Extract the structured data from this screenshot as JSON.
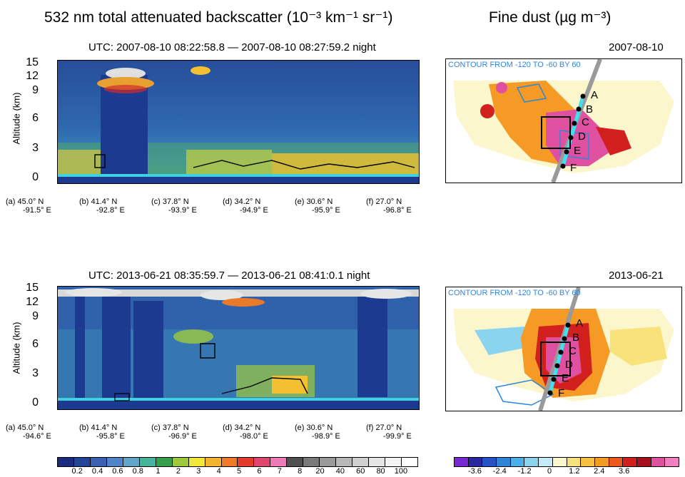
{
  "headings": {
    "left": "532 nm  total attenuated backscatter (10⁻³ km⁻¹ sr⁻¹)",
    "right": "Fine dust (µg m⁻³)"
  },
  "panels": [
    {
      "utc": "UTC: 2007-08-10 08:22:58.8 —  2007-08-10 08:27:59.2 night",
      "date": "2007-08-10",
      "contour_note": "CONTOUR FROM -120 TO -60 BY 60",
      "ylabel": "Altitude (km)",
      "yticks": [
        "15",
        "12",
        "9",
        "6",
        "3",
        "0"
      ],
      "xticks": [
        {
          "l1": "(a) 45.0° N",
          "l2": "-91.5° E"
        },
        {
          "l1": "(b) 41.4° N",
          "l2": "-92.8° E"
        },
        {
          "l1": "(c) 37.8° N",
          "l2": "-93.9° E"
        },
        {
          "l1": "(d) 34.2° N",
          "l2": "-94.9° E"
        },
        {
          "l1": "(e) 30.6° N",
          "l2": "-95.9° E"
        },
        {
          "l1": "(f)  27.0° N",
          "l2": "-96.8° E"
        }
      ],
      "points": [
        "A",
        "B",
        "C",
        "D",
        "E",
        "F"
      ]
    },
    {
      "utc": "UTC: 2013-06-21 08:35:59.7 —  2013-06-21 08:41:0.1 night",
      "date": "2013-06-21",
      "contour_note": "CONTOUR FROM -120 TO -60 BY 60",
      "ylabel": "Altitude (km)",
      "yticks": [
        "15",
        "12",
        "9",
        "6",
        "3",
        "0"
      ],
      "xticks": [
        {
          "l1": "(a) 45.0° N",
          "l2": "-94.6° E"
        },
        {
          "l1": "(b) 41.4° N",
          "l2": "-95.8° E"
        },
        {
          "l1": "(c) 37.8° N",
          "l2": "-96.9° E"
        },
        {
          "l1": "(d) 34.2° N",
          "l2": "-98.0° E"
        },
        {
          "l1": "(e) 30.6° N",
          "l2": "-98.9° E"
        },
        {
          "l1": "(f)  27.0° N",
          "l2": "-99.9° E"
        }
      ],
      "points": [
        "A",
        "B",
        "C",
        "D",
        "E",
        "F"
      ]
    }
  ],
  "colorbars": {
    "backscatter": {
      "labels": [
        "0.2",
        "0.4",
        "0.6",
        "0.8",
        "1",
        "2",
        "3",
        "4",
        "5",
        "6",
        "7",
        "8",
        "20",
        "40",
        "60",
        "80",
        "100"
      ],
      "colors": [
        "#1a2a80",
        "#24449a",
        "#3a62b4",
        "#4f84c8",
        "#5fa5cc",
        "#44b49a",
        "#34a04a",
        "#9ec93c",
        "#f2e83a",
        "#f5b430",
        "#f07a28",
        "#e63a2a",
        "#e0466e",
        "#ef7ab8",
        "#505050",
        "#7a7a7a",
        "#9a9a9a",
        "#b8b8b8",
        "#d0d0d0",
        "#e4e4e4",
        "#f2f2f2",
        "#ffffff"
      ]
    },
    "dust": {
      "labels": [
        "-3.6",
        "-2.4",
        "-1.2",
        "0",
        "1.2",
        "2.4",
        "3.6"
      ],
      "colors": [
        "#7a2ad0",
        "#2a2aa0",
        "#2454c8",
        "#2f86d8",
        "#4ab0e8",
        "#8ad4f0",
        "#c4ecf8",
        "#fbf6cc",
        "#f8e27a",
        "#f8c040",
        "#f59a24",
        "#ec5a1e",
        "#d2201e",
        "#a8101a",
        "#e050a0",
        "#f080c0"
      ]
    }
  }
}
